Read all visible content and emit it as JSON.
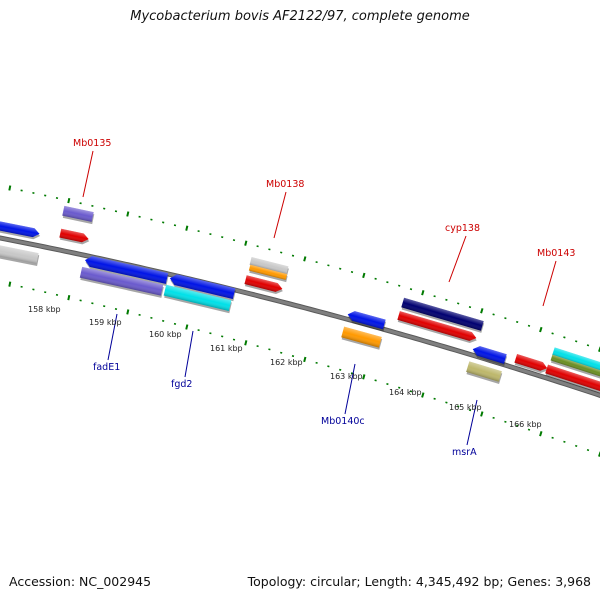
{
  "title": "Mycobacterium bovis AF2122/97, complete genome",
  "footer": {
    "accession": "Accession: NC_002945",
    "summary": "Topology: circular; Length: 4,345,492 bp; Genes: 3,968"
  },
  "colors": {
    "backbone": "#808080",
    "tick": "#007a00",
    "label_forward": "#cc0000",
    "label_reverse": "#000099",
    "feature_red": "#e00000",
    "feature_blue": "#0014e6",
    "feature_navy": "#000070",
    "feature_slate": "#6a5acd",
    "feature_cyan": "#00e0e8",
    "feature_orange": "#ff9900",
    "feature_olive": "#6b8e23",
    "feature_khaki": "#bdb76b",
    "feature_grey": "#c8c8c8"
  },
  "scale_labels": [
    "158 kbp",
    "159 kbp",
    "160 kbp",
    "161 kbp",
    "162 kbp",
    "163 kbp",
    "164 kbp",
    "165 kbp",
    "166 kbp"
  ],
  "gene_labels": {
    "forward": [
      "Mb0135",
      "Mb0138",
      "cyp138",
      "Mb0143"
    ],
    "reverse": [
      "fadE1",
      "fgd2",
      "Mb0140c",
      "msrA"
    ]
  }
}
